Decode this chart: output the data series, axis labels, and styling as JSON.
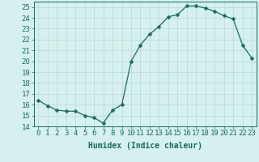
{
  "x": [
    0,
    1,
    2,
    3,
    4,
    5,
    6,
    7,
    8,
    9,
    10,
    11,
    12,
    13,
    14,
    15,
    16,
    17,
    18,
    19,
    20,
    21,
    22,
    23
  ],
  "y": [
    16.4,
    15.9,
    15.5,
    15.4,
    15.4,
    15.0,
    14.8,
    14.3,
    15.5,
    16.0,
    20.0,
    21.5,
    22.5,
    23.2,
    24.1,
    24.3,
    25.1,
    25.1,
    24.9,
    24.6,
    24.2,
    23.9,
    21.5,
    20.3
  ],
  "line_color": "#1a6b5a",
  "marker": "D",
  "marker_size": 2.5,
  "bg_color": "#d5f0ee",
  "grid_color": "#b8d8d4",
  "xlabel": "Humidex (Indice chaleur)",
  "ylim": [
    14,
    25.5
  ],
  "yticks": [
    14,
    15,
    16,
    17,
    18,
    19,
    20,
    21,
    22,
    23,
    24,
    25
  ],
  "xticks": [
    0,
    1,
    2,
    3,
    4,
    5,
    6,
    7,
    8,
    9,
    10,
    11,
    12,
    13,
    14,
    15,
    16,
    17,
    18,
    19,
    20,
    21,
    22,
    23
  ],
  "xlim": [
    -0.5,
    23.5
  ],
  "label_fontsize": 7,
  "tick_fontsize": 6.5
}
